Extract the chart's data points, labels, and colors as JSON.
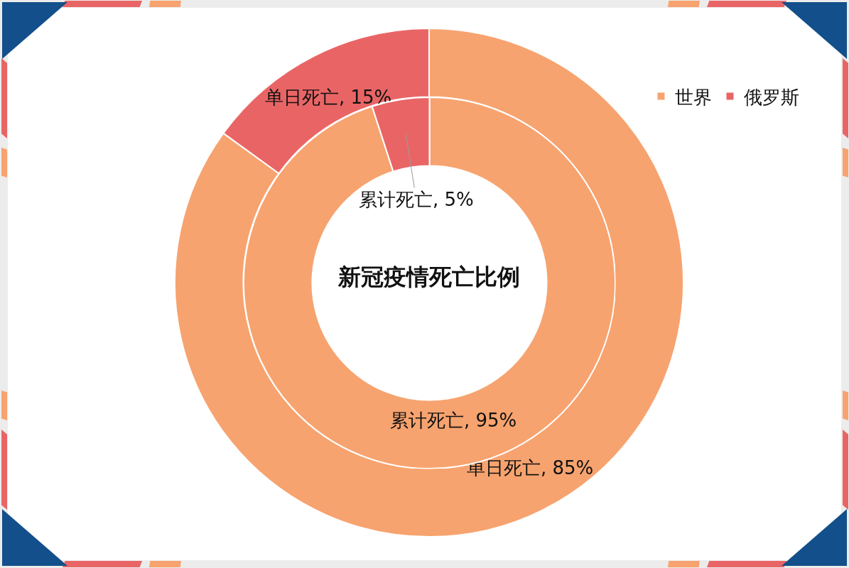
{
  "chart_data": [
    {
      "type": "donut",
      "title": "新冠疫情死亡比例",
      "categories": [
        "世界",
        "俄罗斯"
      ],
      "colors": [
        "#f7a36f",
        "#e96565"
      ],
      "values": [
        85,
        15
      ],
      "value_labels": [
        "单日死亡, 85%",
        "单日死亡, 15%"
      ],
      "legend": "top right"
    },
    {
      "type": "donut",
      "categories": [
        null,
        null
      ],
      "colors": [
        "#f7a36f",
        "#e96565"
      ],
      "values": [
        95,
        5
      ],
      "value_labels": [
        "累计死亡, 95%",
        "累计死亡, 5%"
      ]
    }
  ]
}
